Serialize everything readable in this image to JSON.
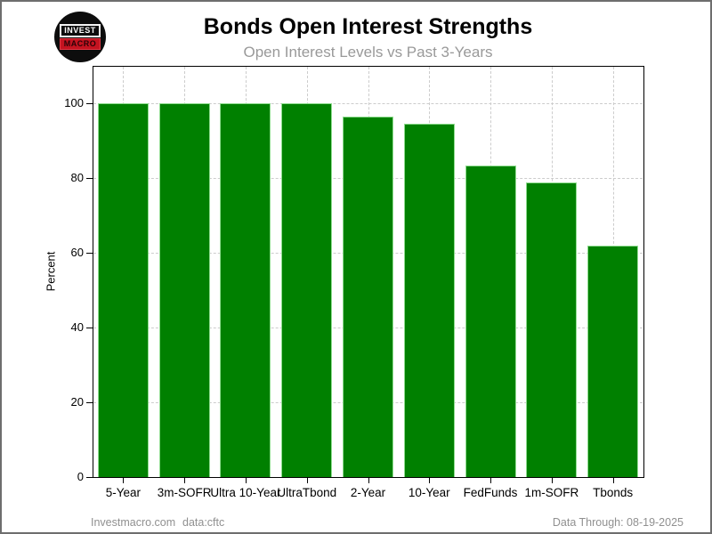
{
  "logo": {
    "line1": "INVEST",
    "line2": "MACRO",
    "bg_color": "#0d0d0d",
    "accent_color": "#c41320"
  },
  "chart_data": {
    "type": "bar",
    "title": "Bonds Open Interest Strengths",
    "subtitle": "Open Interest Levels vs Past 3-Years",
    "categories": [
      "5-Year",
      "3m-SOFR",
      "Ultra 10-Year",
      "UltraTbond",
      "2-Year",
      "10-Year",
      "FedFunds",
      "1m-SOFR",
      "Tbonds"
    ],
    "values": [
      100,
      100,
      100,
      100,
      96.5,
      94.5,
      83.3,
      78.9,
      61.9
    ],
    "xlabel": "",
    "ylabel": "Percent",
    "ylim": [
      0,
      110
    ],
    "yticks": [
      0,
      20,
      40,
      60,
      80,
      100
    ],
    "grid": true,
    "legend": "none",
    "bar_color": "#008000",
    "bar_edge_color": "#8fdc8f",
    "grid_color": "#cccccc",
    "axis_color": "#000000",
    "tick_label_color": "#000000",
    "subtitle_color": "#999999"
  },
  "footer": {
    "site": "Investmacro.com",
    "source": "data:cftc",
    "data_through": "Data Through: 08-19-2025"
  }
}
